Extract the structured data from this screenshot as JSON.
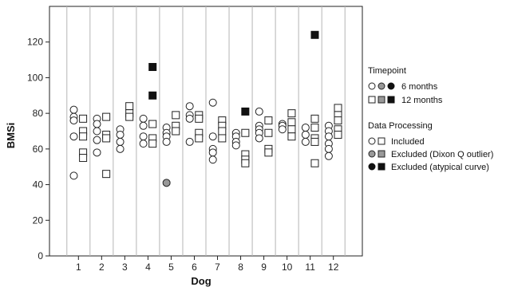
{
  "chart_data": {
    "type": "scatter",
    "xlabel": "Dog",
    "ylabel": "BMSi",
    "ylim": [
      0,
      140
    ],
    "yticks": [
      0,
      20,
      40,
      60,
      80,
      100,
      120
    ],
    "categories": [
      "1",
      "2",
      "3",
      "4",
      "5",
      "6",
      "7",
      "8",
      "9",
      "10",
      "11",
      "12"
    ],
    "grid": "vertical separators between dogs",
    "legend_position": "right",
    "colors": {
      "included": "#ffffff",
      "dixon": "#999999",
      "atypical": "#111111",
      "stroke": "#222222"
    },
    "series": [
      {
        "dog": 1,
        "timepoint": "6 months",
        "processing": "included",
        "values": [
          82,
          78,
          76,
          67,
          45
        ]
      },
      {
        "dog": 1,
        "timepoint": "12 months",
        "processing": "included",
        "values": [
          77,
          70,
          67,
          58,
          55
        ]
      },
      {
        "dog": 2,
        "timepoint": "6 months",
        "processing": "included",
        "values": [
          77,
          74,
          70,
          65,
          58
        ]
      },
      {
        "dog": 2,
        "timepoint": "12 months",
        "processing": "included",
        "values": [
          78,
          68,
          66,
          46
        ]
      },
      {
        "dog": 3,
        "timepoint": "6 months",
        "processing": "included",
        "values": [
          71,
          68,
          64,
          60
        ]
      },
      {
        "dog": 3,
        "timepoint": "12 months",
        "processing": "included",
        "values": [
          84,
          80,
          78
        ]
      },
      {
        "dog": 4,
        "timepoint": "6 months",
        "processing": "included",
        "values": [
          77,
          73,
          67,
          63
        ]
      },
      {
        "dog": 4,
        "timepoint": "12 months",
        "processing": "included",
        "values": [
          74,
          66,
          63
        ]
      },
      {
        "dog": 4,
        "timepoint": "12 months",
        "processing": "atypical",
        "values": [
          106,
          90
        ]
      },
      {
        "dog": 5,
        "timepoint": "6 months",
        "processing": "included",
        "values": [
          72,
          69,
          67,
          64
        ]
      },
      {
        "dog": 5,
        "timepoint": "6 months",
        "processing": "dixon",
        "values": [
          41
        ]
      },
      {
        "dog": 5,
        "timepoint": "12 months",
        "processing": "included",
        "values": [
          79,
          73,
          70
        ]
      },
      {
        "dog": 6,
        "timepoint": "6 months",
        "processing": "included",
        "values": [
          84,
          79,
          77,
          64
        ]
      },
      {
        "dog": 6,
        "timepoint": "12 months",
        "processing": "included",
        "values": [
          79,
          77,
          69,
          66
        ]
      },
      {
        "dog": 7,
        "timepoint": "6 months",
        "processing": "included",
        "values": [
          86,
          67,
          60,
          58,
          54
        ]
      },
      {
        "dog": 7,
        "timepoint": "12 months",
        "processing": "included",
        "values": [
          76,
          73,
          70,
          66
        ]
      },
      {
        "dog": 8,
        "timepoint": "6 months",
        "processing": "included",
        "values": [
          69,
          67,
          64,
          62
        ]
      },
      {
        "dog": 8,
        "timepoint": "12 months",
        "processing": "included",
        "values": [
          69,
          57,
          54,
          52
        ]
      },
      {
        "dog": 8,
        "timepoint": "12 months",
        "processing": "atypical",
        "values": [
          81
        ]
      },
      {
        "dog": 9,
        "timepoint": "6 months",
        "processing": "included",
        "values": [
          81,
          73,
          71,
          69,
          66
        ]
      },
      {
        "dog": 9,
        "timepoint": "12 months",
        "processing": "included",
        "values": [
          76,
          69,
          60,
          58
        ]
      },
      {
        "dog": 10,
        "timepoint": "6 months",
        "processing": "included",
        "values": [
          74,
          73,
          71
        ]
      },
      {
        "dog": 10,
        "timepoint": "12 months",
        "processing": "included",
        "values": [
          80,
          75,
          71,
          67
        ]
      },
      {
        "dog": 11,
        "timepoint": "6 months",
        "processing": "included",
        "values": [
          72,
          68,
          64
        ]
      },
      {
        "dog": 11,
        "timepoint": "12 months",
        "processing": "included",
        "values": [
          77,
          72,
          66,
          64,
          52
        ]
      },
      {
        "dog": 11,
        "timepoint": "12 months",
        "processing": "atypical",
        "values": [
          124
        ]
      },
      {
        "dog": 12,
        "timepoint": "6 months",
        "processing": "included",
        "values": [
          73,
          70,
          67,
          63,
          60,
          56
        ]
      },
      {
        "dog": 12,
        "timepoint": "12 months",
        "processing": "included",
        "values": [
          83,
          79,
          76,
          71,
          68
        ]
      }
    ]
  },
  "legend": {
    "timepoint_title": "Timepoint",
    "timepoint_6": "6 months",
    "timepoint_12": "12 months",
    "processing_title": "Data Processing",
    "included": "Included",
    "dixon": "Excluded (Dixon Q outlier)",
    "atypical": "Excluded (atypical curve)"
  }
}
